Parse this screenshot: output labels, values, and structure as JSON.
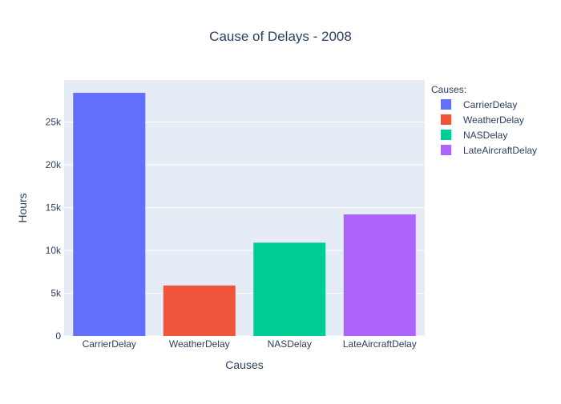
{
  "chart_data": {
    "type": "bar",
    "title": "Cause of Delays - 2008",
    "xlabel": "Causes",
    "ylabel": "Hours",
    "categories": [
      "CarrierDelay",
      "WeatherDelay",
      "NASDelay",
      "LateAircraftDelay"
    ],
    "values": [
      28400,
      5900,
      10900,
      14200
    ],
    "colors": [
      "#636efa",
      "#EF553B",
      "#00cc96",
      "#ab63fa"
    ],
    "ylim": [
      0,
      29900
    ],
    "yticks": [
      0,
      5000,
      10000,
      15000,
      20000,
      25000
    ],
    "ytick_labels": [
      "0",
      "5k",
      "10k",
      "15k",
      "20k",
      "25k"
    ],
    "grid": true,
    "plot_background": "#e5ecf6",
    "legend": {
      "title": "Causes:",
      "placement": "top-right",
      "entries": [
        "CarrierDelay",
        "WeatherDelay",
        "NASDelay",
        "LateAircraftDelay"
      ]
    }
  }
}
